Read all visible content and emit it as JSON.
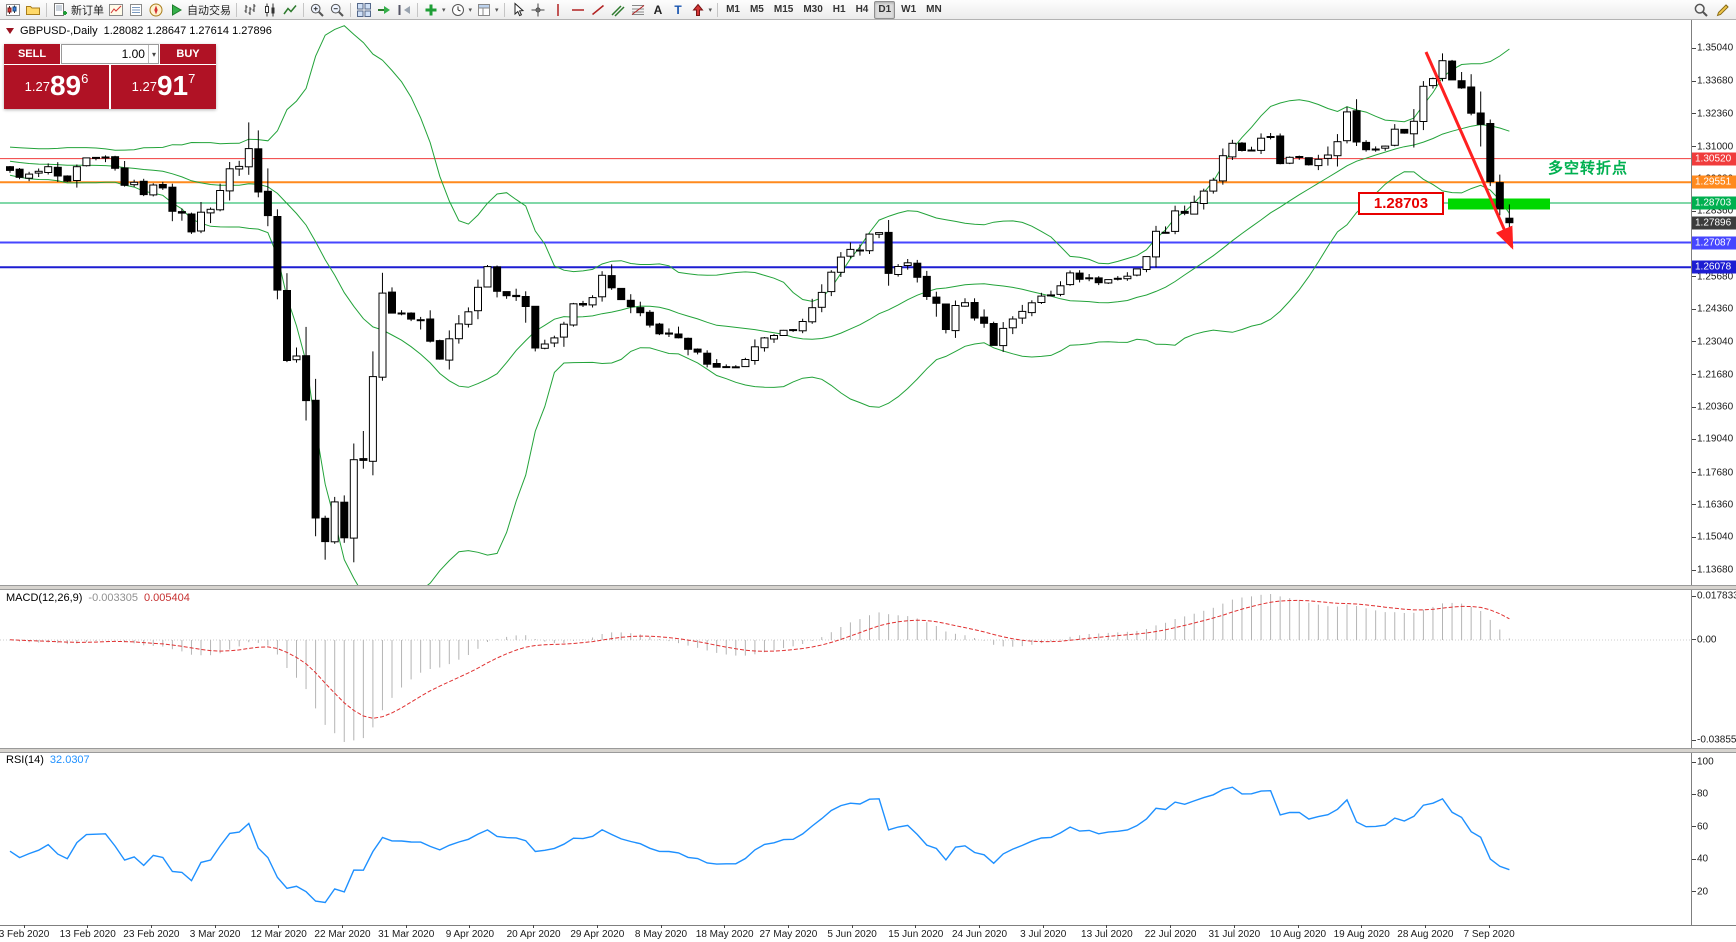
{
  "toolbar": {
    "groups": [
      {
        "name": "standard",
        "items": [
          {
            "name": "new-chart",
            "icon": "chart-add"
          },
          {
            "name": "profiles",
            "icon": "profiles"
          }
        ]
      },
      {
        "name": "trade",
        "items": [
          {
            "name": "new-order",
            "icon": "new-order",
            "label": "新订单"
          },
          {
            "name": "market-watch",
            "icon": "market-watch"
          },
          {
            "name": "data-window",
            "icon": "data-window"
          },
          {
            "name": "navigator",
            "icon": "navigator"
          },
          {
            "name": "autotrading",
            "icon": "play",
            "label": "自动交易"
          }
        ]
      },
      {
        "name": "chart-type",
        "items": [
          {
            "name": "bar-chart",
            "icon": "bars"
          },
          {
            "name": "candlestick-chart",
            "icon": "candles"
          },
          {
            "name": "line-chart",
            "icon": "line"
          }
        ]
      },
      {
        "name": "zoom",
        "items": [
          {
            "name": "zoom-in",
            "icon": "zoom-in"
          },
          {
            "name": "zoom-out",
            "icon": "zoom-out"
          }
        ]
      },
      {
        "name": "windows",
        "items": [
          {
            "name": "tile-windows",
            "icon": "tile"
          },
          {
            "name": "auto-scroll",
            "icon": "auto-scroll"
          },
          {
            "name": "chart-shift",
            "icon": "chart-shift"
          }
        ]
      },
      {
        "name": "chart-tools",
        "items": [
          {
            "name": "indicators-list",
            "icon": "indicators",
            "dropdown": true
          },
          {
            "name": "periods",
            "icon": "clock",
            "dropdown": true
          },
          {
            "name": "templates",
            "icon": "template",
            "dropdown": true
          }
        ]
      },
      {
        "name": "line-studies",
        "items": [
          {
            "name": "cursor",
            "icon": "cursor"
          },
          {
            "name": "crosshair",
            "icon": "crosshair"
          },
          {
            "name": "vertical-line",
            "icon": "vline"
          },
          {
            "name": "horizontal-line",
            "icon": "hline"
          },
          {
            "name": "trendline",
            "icon": "tline"
          },
          {
            "name": "equidistant-channel",
            "icon": "channel"
          },
          {
            "name": "fibonacci-retracement",
            "icon": "fibo"
          },
          {
            "name": "text",
            "icon": "text-a"
          },
          {
            "name": "text-label",
            "icon": "text-t"
          },
          {
            "name": "arrows",
            "icon": "arrow-tool",
            "dropdown": true
          }
        ]
      }
    ],
    "timeframes": [
      {
        "label": "M1"
      },
      {
        "label": "M5"
      },
      {
        "label": "M15"
      },
      {
        "label": "M30"
      },
      {
        "label": "H1"
      },
      {
        "label": "H4"
      },
      {
        "label": "D1",
        "active": true
      },
      {
        "label": "W1"
      },
      {
        "label": "MN"
      }
    ],
    "right_items": [
      {
        "name": "quick-search",
        "icon": "magnifier"
      },
      {
        "name": "metaeditor",
        "icon": "pencil"
      }
    ]
  },
  "trade_panel": {
    "sell": {
      "label": "SELL",
      "price_main": "1.27",
      "price_big": "89",
      "price_sup": "6"
    },
    "buy": {
      "label": "BUY",
      "price_main": "1.27",
      "price_big": "91",
      "price_sup": "7"
    },
    "volume": "1.00"
  },
  "chart": {
    "title": "GBPUSD-,Daily",
    "ohlc": "1.28082 1.28647 1.27614 1.27896",
    "axis_labels": [
      "1.35040",
      "1.33680",
      "1.32360",
      "1.31000",
      "1.29680",
      "1.28360",
      "1.27040",
      "1.25680",
      "1.24360",
      "1.23040",
      "1.21680",
      "1.20360",
      "1.19040",
      "1.17680",
      "1.16360",
      "1.15040",
      "1.13680"
    ],
    "levels": [
      {
        "label": "1.30520",
        "value": 1.3052,
        "color": "#f03c3c",
        "width": 1
      },
      {
        "label": "1.29551",
        "value": 1.29551,
        "color": "#ff8a1e",
        "width": 2
      },
      {
        "label": "1.28703",
        "value": 1.28703,
        "color": "#00b050",
        "width": 1
      },
      {
        "label": "1.27087",
        "value": 1.27087,
        "color": "#4646ff",
        "width": 2
      },
      {
        "label": "1.26078",
        "value": 1.26078,
        "color": "#1d1dd2",
        "width": 2
      }
    ],
    "current_price": {
      "label": "1.27896",
      "value": 1.27896,
      "color": "#3c3c3c"
    },
    "annotations": {
      "price_label": "1.28703",
      "turning_point_text": "多空转折点",
      "highlight_color": "#00d800",
      "arrow_color": "#ff2020",
      "label_color": "#e80000",
      "text_color": "#00b050"
    }
  },
  "macd": {
    "label": "MACD(12,26,9)",
    "value_main": "-0.003305",
    "value_signal": "0.005404",
    "axis_top": "0.017833",
    "axis_zero": "0.00",
    "axis_bottom": "-0.038559",
    "hist_color": "#b4b4b4",
    "signal_color": "#e03131"
  },
  "rsi": {
    "label": "RSI(14)",
    "value": "32.0307",
    "axis": [
      "100",
      "80",
      "60",
      "40",
      "20"
    ],
    "line_color": "#1e90ff"
  },
  "date_axis": [
    "3 Feb 2020",
    "13 Feb 2020",
    "23 Feb 2020",
    "3 Mar 2020",
    "12 Mar 2020",
    "22 Mar 2020",
    "31 Mar 2020",
    "9 Apr 2020",
    "20 Apr 2020",
    "29 Apr 2020",
    "8 May 2020",
    "18 May 2020",
    "27 May 2020",
    "5 Jun 2020",
    "15 Jun 2020",
    "24 Jun 2020",
    "3 Jul 2020",
    "13 Jul 2020",
    "22 Jul 2020",
    "31 Jul 2020",
    "10 Aug 2020",
    "19 Aug 2020",
    "28 Aug 2020",
    "7 Sep 2020"
  ],
  "chart_data": {
    "type": "candlestick",
    "symbol": "GBPUSD",
    "period": "Daily",
    "visible_range": {
      "price_min": 1.1368,
      "price_max": 1.3504,
      "date_start": "3 Feb 2020",
      "date_end": "7 Sep 2020"
    },
    "candle_count": 158,
    "close_anchors": [
      [
        0,
        1.2995
      ],
      [
        2,
        1.298
      ],
      [
        4,
        1.301
      ],
      [
        6,
        1.2945
      ],
      [
        8,
        1.304
      ],
      [
        10,
        1.3048
      ],
      [
        12,
        1.2958
      ],
      [
        14,
        1.2915
      ],
      [
        16,
        1.2948
      ],
      [
        18,
        1.2798
      ],
      [
        19,
        1.2762
      ],
      [
        21,
        1.2872
      ],
      [
        23,
        1.2986
      ],
      [
        25,
        1.309
      ],
      [
        26,
        1.2905
      ],
      [
        27,
        1.282
      ],
      [
        28,
        1.257
      ],
      [
        29,
        1.2282
      ],
      [
        30,
        1.227
      ],
      [
        31,
        1.2046
      ],
      [
        32,
        1.164
      ],
      [
        33,
        1.149
      ],
      [
        34,
        1.1638
      ],
      [
        35,
        1.1536
      ],
      [
        36,
        1.176
      ],
      [
        37,
        1.1874
      ],
      [
        38,
        1.2185
      ],
      [
        39,
        1.2454
      ],
      [
        41,
        1.2416
      ],
      [
        43,
        1.239
      ],
      [
        45,
        1.2226
      ],
      [
        47,
        1.238
      ],
      [
        49,
        1.2516
      ],
      [
        50,
        1.2622
      ],
      [
        51,
        1.2512
      ],
      [
        53,
        1.25
      ],
      [
        55,
        1.2296
      ],
      [
        57,
        1.2322
      ],
      [
        59,
        1.2438
      ],
      [
        61,
        1.2466
      ],
      [
        62,
        1.2588
      ],
      [
        63,
        1.25
      ],
      [
        65,
        1.2436
      ],
      [
        67,
        1.2364
      ],
      [
        69,
        1.2334
      ],
      [
        71,
        1.2262
      ],
      [
        73,
        1.223
      ],
      [
        75,
        1.2196
      ],
      [
        77,
        1.2222
      ],
      [
        80,
        1.2336
      ],
      [
        83,
        1.2344
      ],
      [
        84,
        1.249
      ],
      [
        86,
        1.2572
      ],
      [
        88,
        1.267
      ],
      [
        90,
        1.2732
      ],
      [
        91,
        1.275
      ],
      [
        92,
        1.2602
      ],
      [
        94,
        1.2606
      ],
      [
        96,
        1.2512
      ],
      [
        98,
        1.2352
      ],
      [
        99,
        1.2468
      ],
      [
        101,
        1.2422
      ],
      [
        103,
        1.23
      ],
      [
        105,
        1.2402
      ],
      [
        107,
        1.247
      ],
      [
        109,
        1.2492
      ],
      [
        111,
        1.26
      ],
      [
        113,
        1.2552
      ],
      [
        115,
        1.2556
      ],
      [
        117,
        1.257
      ],
      [
        119,
        1.266
      ],
      [
        120,
        1.2734
      ],
      [
        122,
        1.282
      ],
      [
        124,
        1.288
      ],
      [
        126,
        1.2972
      ],
      [
        128,
        1.31
      ],
      [
        129,
        1.3086
      ],
      [
        130,
        1.3076
      ],
      [
        132,
        1.3144
      ],
      [
        133,
        1.3052
      ],
      [
        135,
        1.3046
      ],
      [
        136,
        1.3032
      ],
      [
        138,
        1.3086
      ],
      [
        140,
        1.324
      ],
      [
        141,
        1.3096
      ],
      [
        143,
        1.309
      ],
      [
        145,
        1.3154
      ],
      [
        147,
        1.32
      ],
      [
        148,
        1.335
      ],
      [
        149,
        1.3392
      ],
      [
        150,
        1.3456
      ],
      [
        151,
        1.3384
      ],
      [
        152,
        1.335
      ],
      [
        153,
        1.3282
      ],
      [
        154,
        1.317
      ],
      [
        155,
        1.2985
      ],
      [
        156,
        1.2865
      ],
      [
        157,
        1.27896
      ]
    ],
    "last_candle": {
      "open": 1.28082,
      "high": 1.28647,
      "low": 1.27614,
      "close": 1.27896
    },
    "pinned_extremes": {
      "high_index": 150,
      "high": 1.3482,
      "low_index": 33,
      "low": 1.1412,
      "spike_index": 25,
      "spike_high": 1.32
    },
    "overlays": {
      "bollinger_period": 20,
      "bollinger_deviation": 2,
      "bollinger_color": "#23a33a"
    },
    "candle_colors": {
      "bull": "#ffffff",
      "bear": "#000000",
      "outline": "#000000"
    },
    "horizontal_levels": [
      1.3052,
      1.29551,
      1.28703,
      1.27087,
      1.26078
    ],
    "indicators": [
      {
        "name": "MACD",
        "params": [
          12,
          26,
          9
        ],
        "current": [
          -0.003305,
          0.005404
        ],
        "scale": [
          -0.038559,
          0.017833
        ]
      },
      {
        "name": "RSI",
        "params": [
          14
        ],
        "current": 32.0307,
        "scale": [
          0,
          100
        ]
      }
    ]
  }
}
